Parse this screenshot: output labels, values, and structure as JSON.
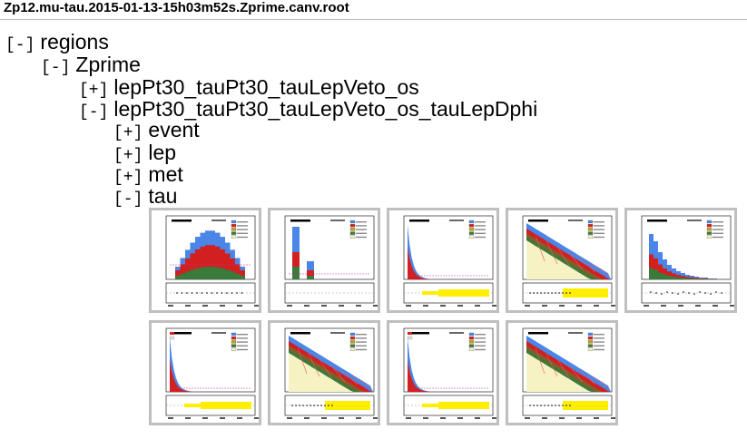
{
  "page": {
    "title": "Zp12.mu-tau.2015-01-13-15h03m52s.Zprime.canv.root"
  },
  "tree": {
    "regions": {
      "toggle": "[-]",
      "label": "regions"
    },
    "zprime": {
      "toggle": "[-]",
      "label": "Zprime"
    },
    "sel_os": {
      "toggle": "[+]",
      "label": "lepPt30_tauPt30_tauLepVeto_os"
    },
    "sel_os_dphi": {
      "toggle": "[-]",
      "label": "lepPt30_tauPt30_tauLepVeto_os_tauLepDphi"
    },
    "event": {
      "toggle": "[+]",
      "label": "event"
    },
    "lep": {
      "toggle": "[+]",
      "label": "lep"
    },
    "met": {
      "toggle": "[+]",
      "label": "met"
    },
    "tau": {
      "toggle": "[-]",
      "label": "tau"
    }
  },
  "thumbnails": [
    {
      "kind": "eta-hist",
      "xlabel": "η(τ_h)",
      "ylabel": "Events / 0.4"
    },
    {
      "kind": "ntracks-hist",
      "xlabel": "N_tracks(τ_h)",
      "ylabel": "Events"
    },
    {
      "kind": "pt-fall",
      "xlabel": "p_T(τ_h) [GeV]",
      "ylabel": "Events / 10 GeV"
    },
    {
      "kind": "pt-log",
      "xlabel": "p_T(τ_h) [GeV]",
      "ylabel": "Events / 10 GeV"
    },
    {
      "kind": "pt-peak",
      "xlabel": "p_T(τ_h) [GeV]",
      "ylabel": "Events / 5 GeV"
    },
    {
      "kind": "mass-fall",
      "xlabel": "p_T(τ_h) [GeV]",
      "ylabel": "Events / bin"
    },
    {
      "kind": "mass-log",
      "xlabel": "p_T(τ_h) [GeV]",
      "ylabel": "Events / bin"
    },
    {
      "kind": "mass-fall",
      "xlabel": "p_T(τ_h) [GeV]",
      "ylabel": "Events / bin"
    },
    {
      "kind": "mass-log",
      "xlabel": "p_T(τ_h) [GeV]",
      "ylabel": "Events / bin"
    }
  ],
  "colors": {
    "border": "#bfbfbf",
    "blue": "#4a86e8",
    "red": "#d21f1f",
    "green": "#3a7a3a",
    "cream": "#f7f2c4",
    "yellow": "#ffee00"
  }
}
